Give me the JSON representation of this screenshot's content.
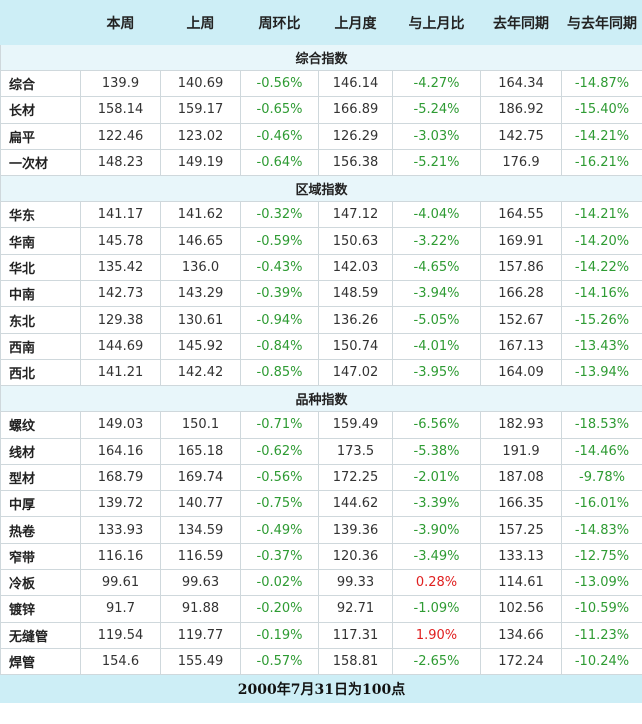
{
  "header": {
    "blank": "",
    "cols": [
      "本周",
      "上周",
      "周环比",
      "上月度",
      "与上月比",
      "去年同期",
      "与去年同期"
    ]
  },
  "sections": [
    {
      "title": "综合指数",
      "rows": [
        {
          "name": "综合",
          "this_week": "139.9",
          "last_week": "140.69",
          "wow": "-0.56%",
          "last_month": "146.14",
          "mom": "-4.27%",
          "last_year": "164.34",
          "yoy": "-14.87%"
        },
        {
          "name": "长材",
          "this_week": "158.14",
          "last_week": "159.17",
          "wow": "-0.65%",
          "last_month": "166.89",
          "mom": "-5.24%",
          "last_year": "186.92",
          "yoy": "-15.40%"
        },
        {
          "name": "扁平",
          "this_week": "122.46",
          "last_week": "123.02",
          "wow": "-0.46%",
          "last_month": "126.29",
          "mom": "-3.03%",
          "last_year": "142.75",
          "yoy": "-14.21%"
        },
        {
          "name": "一次材",
          "this_week": "148.23",
          "last_week": "149.19",
          "wow": "-0.64%",
          "last_month": "156.38",
          "mom": "-5.21%",
          "last_year": "176.9",
          "yoy": "-16.21%"
        }
      ]
    },
    {
      "title": "区域指数",
      "rows": [
        {
          "name": "华东",
          "this_week": "141.17",
          "last_week": "141.62",
          "wow": "-0.32%",
          "last_month": "147.12",
          "mom": "-4.04%",
          "last_year": "164.55",
          "yoy": "-14.21%"
        },
        {
          "name": "华南",
          "this_week": "145.78",
          "last_week": "146.65",
          "wow": "-0.59%",
          "last_month": "150.63",
          "mom": "-3.22%",
          "last_year": "169.91",
          "yoy": "-14.20%"
        },
        {
          "name": "华北",
          "this_week": "135.42",
          "last_week": "136.0",
          "wow": "-0.43%",
          "last_month": "142.03",
          "mom": "-4.65%",
          "last_year": "157.86",
          "yoy": "-14.22%"
        },
        {
          "name": "中南",
          "this_week": "142.73",
          "last_week": "143.29",
          "wow": "-0.39%",
          "last_month": "148.59",
          "mom": "-3.94%",
          "last_year": "166.28",
          "yoy": "-14.16%"
        },
        {
          "name": "东北",
          "this_week": "129.38",
          "last_week": "130.61",
          "wow": "-0.94%",
          "last_month": "136.26",
          "mom": "-5.05%",
          "last_year": "152.67",
          "yoy": "-15.26%"
        },
        {
          "name": "西南",
          "this_week": "144.69",
          "last_week": "145.92",
          "wow": "-0.84%",
          "last_month": "150.74",
          "mom": "-4.01%",
          "last_year": "167.13",
          "yoy": "-13.43%"
        },
        {
          "name": "西北",
          "this_week": "141.21",
          "last_week": "142.42",
          "wow": "-0.85%",
          "last_month": "147.02",
          "mom": "-3.95%",
          "last_year": "164.09",
          "yoy": "-13.94%"
        }
      ]
    },
    {
      "title": "品种指数",
      "rows": [
        {
          "name": "螺纹",
          "this_week": "149.03",
          "last_week": "150.1",
          "wow": "-0.71%",
          "last_month": "159.49",
          "mom": "-6.56%",
          "last_year": "182.93",
          "yoy": "-18.53%"
        },
        {
          "name": "线材",
          "this_week": "164.16",
          "last_week": "165.18",
          "wow": "-0.62%",
          "last_month": "173.5",
          "mom": "-5.38%",
          "last_year": "191.9",
          "yoy": "-14.46%"
        },
        {
          "name": "型材",
          "this_week": "168.79",
          "last_week": "169.74",
          "wow": "-0.56%",
          "last_month": "172.25",
          "mom": "-2.01%",
          "last_year": "187.08",
          "yoy": "-9.78%"
        },
        {
          "name": "中厚",
          "this_week": "139.72",
          "last_week": "140.77",
          "wow": "-0.75%",
          "last_month": "144.62",
          "mom": "-3.39%",
          "last_year": "166.35",
          "yoy": "-16.01%"
        },
        {
          "name": "热卷",
          "this_week": "133.93",
          "last_week": "134.59",
          "wow": "-0.49%",
          "last_month": "139.36",
          "mom": "-3.90%",
          "last_year": "157.25",
          "yoy": "-14.83%"
        },
        {
          "name": "窄带",
          "this_week": "116.16",
          "last_week": "116.59",
          "wow": "-0.37%",
          "last_month": "120.36",
          "mom": "-3.49%",
          "last_year": "133.13",
          "yoy": "-12.75%"
        },
        {
          "name": "冷板",
          "this_week": "99.61",
          "last_week": "99.63",
          "wow": "-0.02%",
          "last_month": "99.33",
          "mom": "0.28%",
          "last_year": "114.61",
          "yoy": "-13.09%"
        },
        {
          "name": "镀锌",
          "this_week": "91.7",
          "last_week": "91.88",
          "wow": "-0.20%",
          "last_month": "92.71",
          "mom": "-1.09%",
          "last_year": "102.56",
          "yoy": "-10.59%"
        },
        {
          "name": "无缝管",
          "this_week": "119.54",
          "last_week": "119.77",
          "wow": "-0.19%",
          "last_month": "117.31",
          "mom": "1.90%",
          "last_year": "134.66",
          "yoy": "-11.23%"
        },
        {
          "name": "焊管",
          "this_week": "154.6",
          "last_week": "155.49",
          "wow": "-0.57%",
          "last_month": "158.81",
          "mom": "-2.65%",
          "last_year": "172.24",
          "yoy": "-10.24%"
        }
      ]
    }
  ],
  "footer": "2000年7月31日为100点",
  "colors": {
    "header_bg": "#cdeef6",
    "section_bg": "#e8f6fa",
    "negative_pct": "#2e9b33",
    "positive_pct": "#e02020"
  }
}
